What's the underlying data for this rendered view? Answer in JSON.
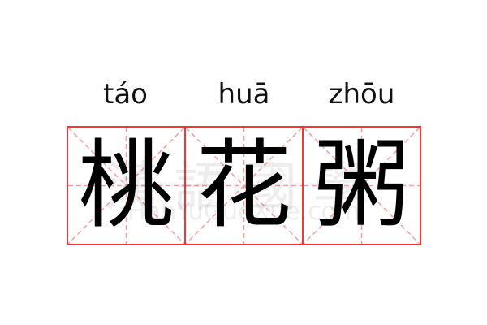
{
  "characters": [
    {
      "hanzi": "桃",
      "pinyin": "táo"
    },
    {
      "hanzi": "花",
      "pinyin": "huā"
    },
    {
      "hanzi": "粥",
      "pinyin": "zhōu"
    }
  ],
  "watermark": {
    "chinese": "漢語國學",
    "latin": "HanYuGuoXue.com"
  },
  "colors": {
    "grid_border": "#ff3333",
    "guide_lines": "#f5a0a0",
    "text": "#000000"
  }
}
